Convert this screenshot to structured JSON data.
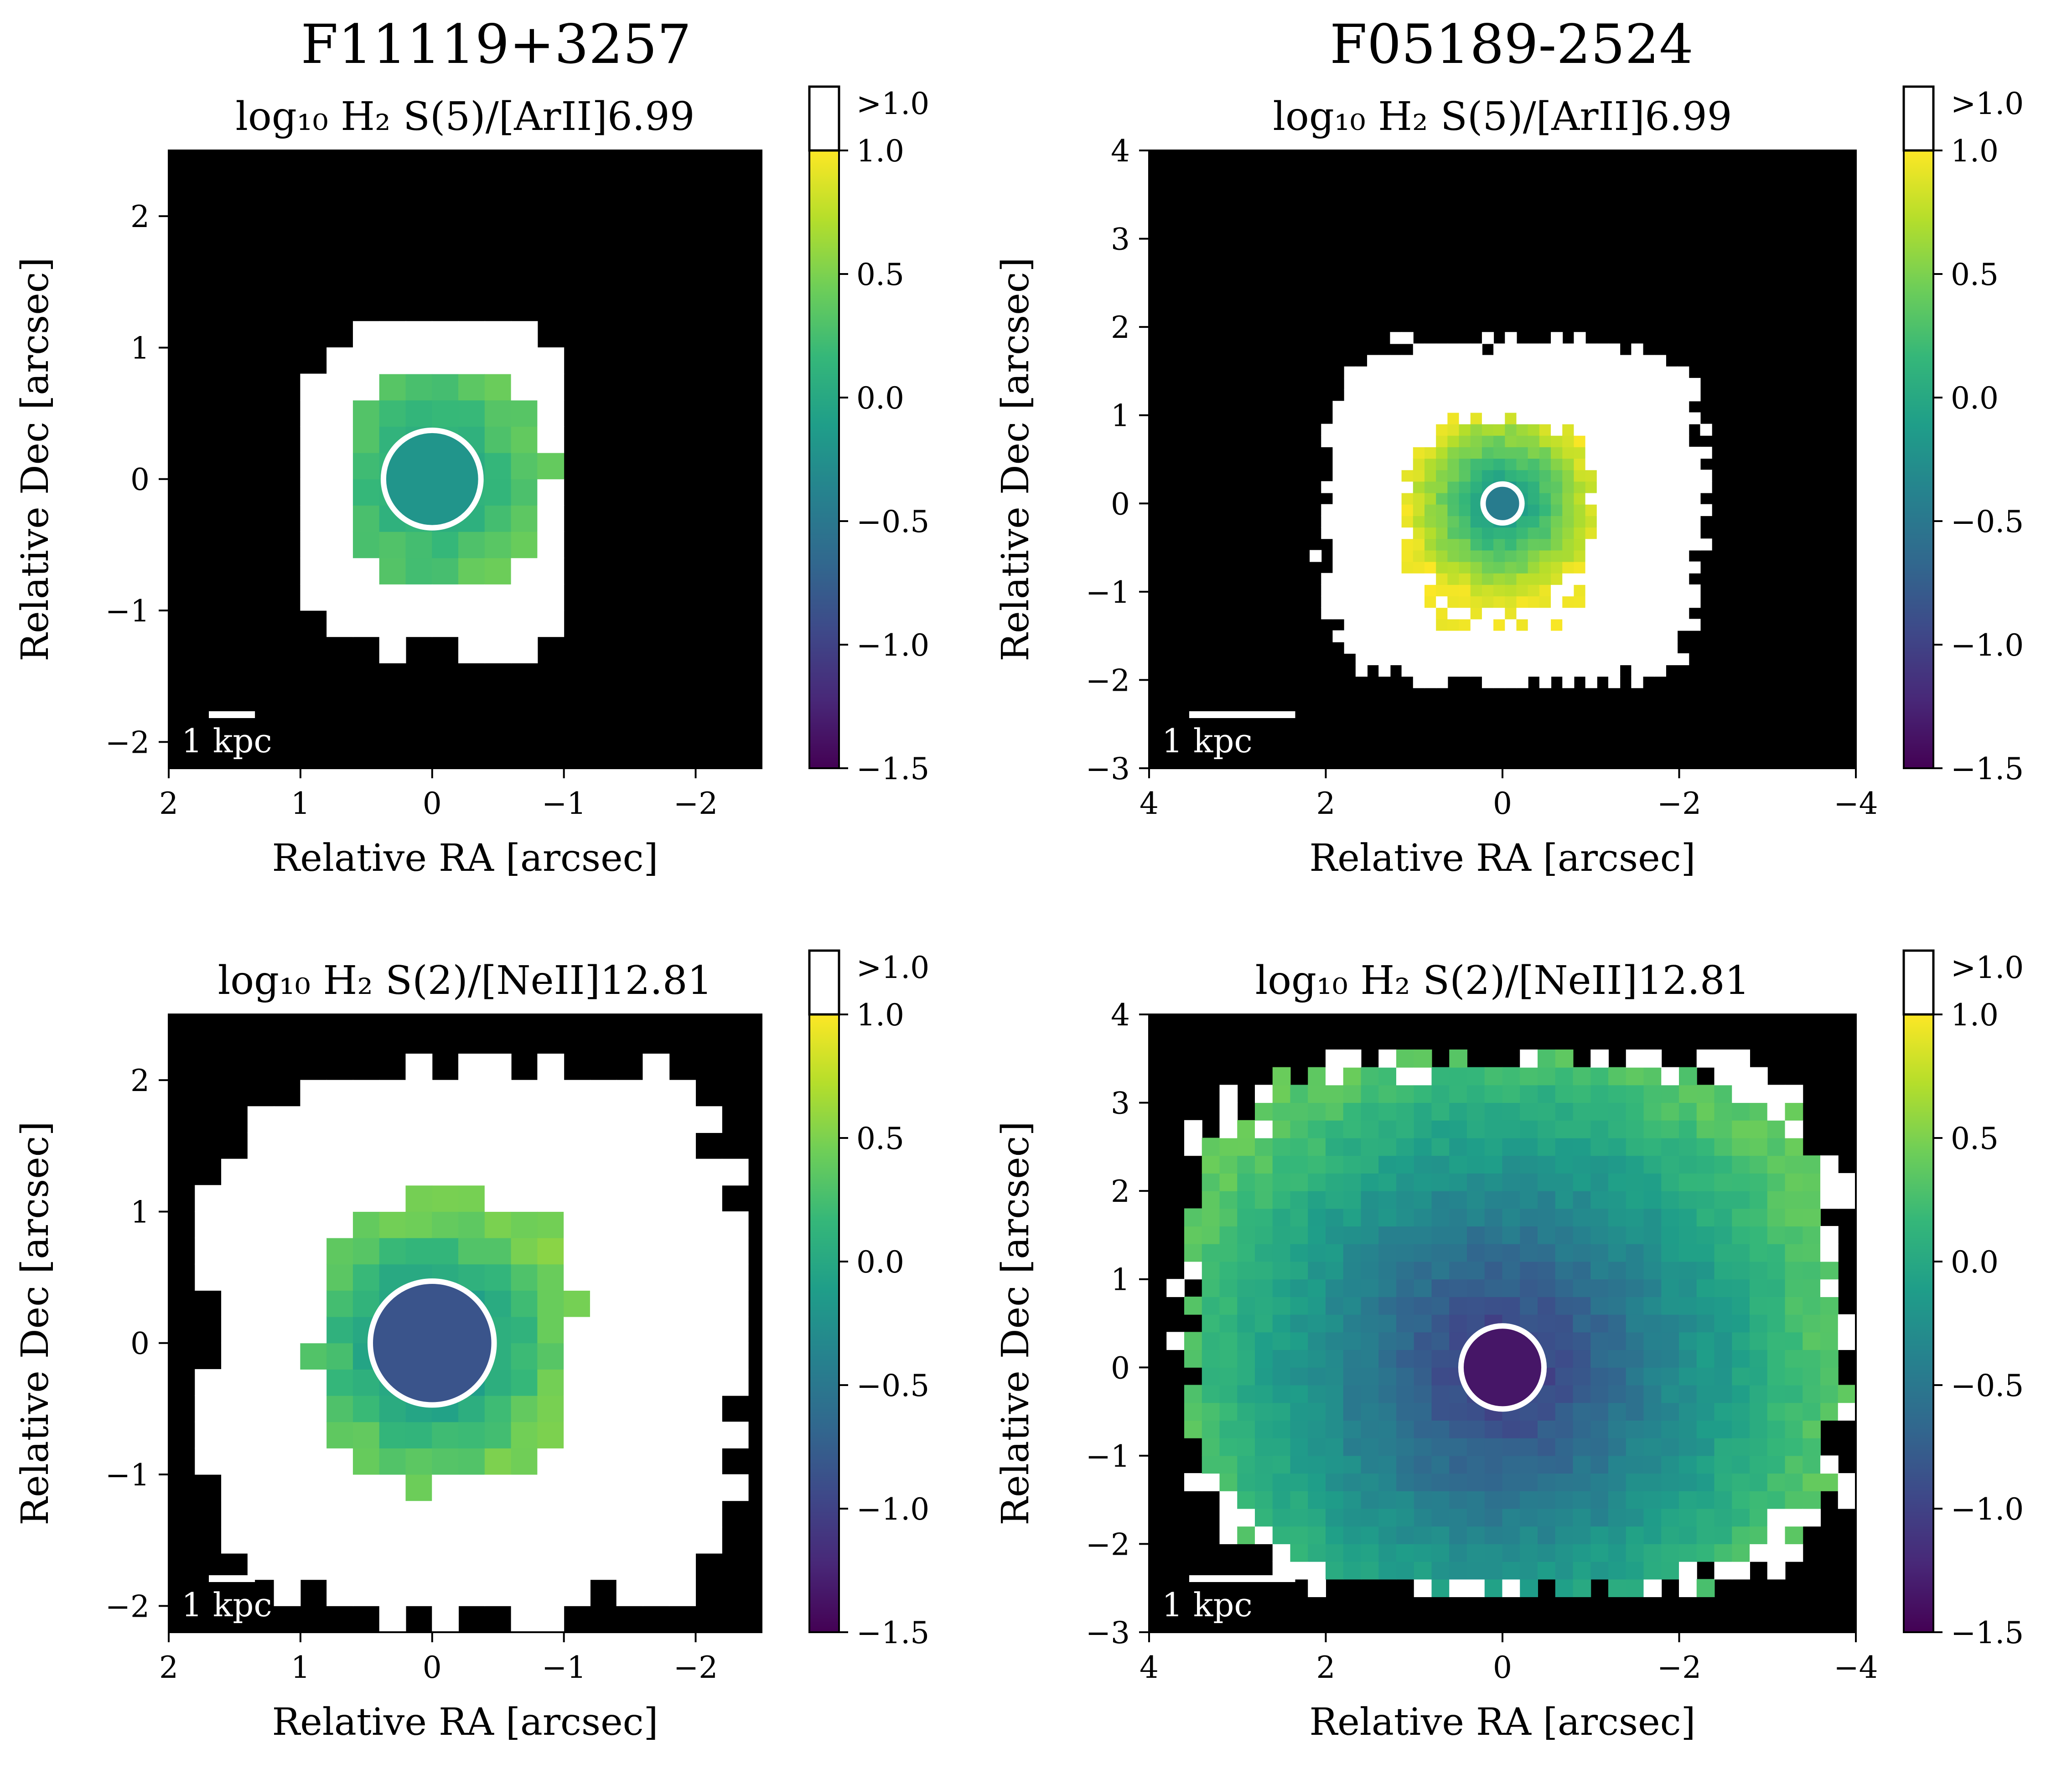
{
  "figure": {
    "column_titles": [
      "F11119+3257",
      "F05189-2524"
    ]
  },
  "colorbar": {
    "colormap": "viridis",
    "ticks": [
      "1.0",
      "0.5",
      "0.0",
      "−0.5",
      "−1.0",
      "−1.5"
    ],
    "overflow_label": ">1.0",
    "vmin": -1.5,
    "vmax": 1.0,
    "colormap_stops": [
      "#440154",
      "#482878",
      "#3e4989",
      "#31688e",
      "#26828e",
      "#1f9e89",
      "#35b779",
      "#6ece58",
      "#b5de2b",
      "#fde725"
    ]
  },
  "chart_data": [
    {
      "type": "heatmap",
      "object": "F11119+3257",
      "title": "log₁₀ H₂ S(5)/[ArII]6.99",
      "xlabel": "Relative RA [arcsec]",
      "ylabel": "Relative Dec [arcsec]",
      "xlim": [
        2,
        -2.5
      ],
      "ylim": [
        -2.2,
        2.5
      ],
      "x_ticks": [
        "2",
        "1",
        "0",
        "−1",
        "−2"
      ],
      "y_ticks": [
        "2",
        "1",
        "0",
        "−1",
        "−2"
      ],
      "scale_bar": "1 kpc",
      "scale_bar_length_arcsec": 0.35,
      "pixel_arcsec": 0.2,
      "valid_region_arcsec": {
        "ra_left": 0.95,
        "ra_right": -1.05,
        "dec_bottom": -1.35,
        "dec_top": 1.2
      },
      "detected_region": {
        "ra_left": 0.6,
        "ra_right": -0.9,
        "dec_bottom": -0.85,
        "dec_top": 0.85
      },
      "nuclear_aperture": {
        "ra": 0,
        "dec": 0,
        "radius_arcsec": 0.37,
        "value": -0.2
      },
      "typical_values": [
        -0.1,
        0.4
      ]
    },
    {
      "type": "heatmap",
      "object": "F05189-2524",
      "title": "log₁₀ H₂ S(5)/[ArII]6.99",
      "xlabel": "Relative RA [arcsec]",
      "ylabel": "Relative Dec [arcsec]",
      "xlim": [
        4,
        -4
      ],
      "ylim": [
        -3,
        4
      ],
      "x_ticks": [
        "4",
        "2",
        "0",
        "−2",
        "−4"
      ],
      "y_ticks": [
        "4",
        "3",
        "2",
        "1",
        "0",
        "−1",
        "−2",
        "−3"
      ],
      "scale_bar": "1 kpc",
      "scale_bar_length_arcsec": 1.2,
      "pixel_arcsec": 0.13,
      "valid_region_arcsec": {
        "ra_left": 2.0,
        "ra_right": -2.3,
        "dec_bottom": -2.05,
        "dec_top": 1.85
      },
      "detected_region": {
        "ra_left": 1.1,
        "ra_right": -1.05,
        "dec_bottom": -1.4,
        "dec_top": 0.95
      },
      "nuclear_aperture": {
        "ra": 0,
        "dec": 0,
        "radius_arcsec": 0.22,
        "value": -0.45
      },
      "typical_values": [
        -0.4,
        1.0
      ]
    },
    {
      "type": "heatmap",
      "object": "F11119+3257",
      "title": "log₁₀ H₂ S(2)/[NeII]12.81",
      "xlabel": "Relative RA [arcsec]",
      "ylabel": "Relative Dec [arcsec]",
      "xlim": [
        2,
        -2.5
      ],
      "ylim": [
        -2.2,
        2.5
      ],
      "x_ticks": [
        "2",
        "1",
        "0",
        "−1",
        "−2"
      ],
      "y_ticks": [
        "2",
        "1",
        "0",
        "−1",
        "−2"
      ],
      "scale_bar": "1 kpc",
      "scale_bar_length_arcsec": 0.35,
      "pixel_arcsec": 0.2,
      "valid_region_arcsec": {
        "ra_left": 1.7,
        "ra_right": -2.35,
        "dec_bottom": -2.05,
        "dec_top": 2.1
      },
      "detected_region": {
        "ra_left": 0.9,
        "ra_right": -1.1,
        "dec_bottom": -1.05,
        "dec_top": 1.1
      },
      "nuclear_aperture": {
        "ra": 0,
        "dec": 0,
        "radius_arcsec": 0.47,
        "value": -0.85
      },
      "typical_values": [
        -0.5,
        0.5
      ]
    },
    {
      "type": "heatmap",
      "object": "F05189-2524",
      "title": "log₁₀ H₂ S(2)/[NeII]12.81",
      "xlabel": "Relative RA [arcsec]",
      "ylabel": "Relative Dec [arcsec]",
      "xlim": [
        4,
        -4
      ],
      "ylim": [
        -3,
        4
      ],
      "x_ticks": [
        "4",
        "2",
        "0",
        "−2",
        "−4"
      ],
      "y_ticks": [
        "4",
        "3",
        "2",
        "1",
        "0",
        "−1",
        "−2",
        "−3"
      ],
      "scale_bar": "1 kpc",
      "scale_bar_length_arcsec": 1.2,
      "pixel_arcsec": 0.2,
      "valid_region_arcsec": {
        "ra_left": 3.6,
        "ra_right": -3.9,
        "dec_bottom": -2.55,
        "dec_top": 3.5
      },
      "detected_region": {
        "ra_left": 3.6,
        "ra_right": -3.9,
        "dec_bottom": -2.55,
        "dec_top": 3.5
      },
      "nuclear_aperture": {
        "ra": 0,
        "dec": 0,
        "radius_arcsec": 0.47,
        "value": -1.35
      },
      "typical_values": [
        -1.2,
        0.35
      ]
    }
  ]
}
